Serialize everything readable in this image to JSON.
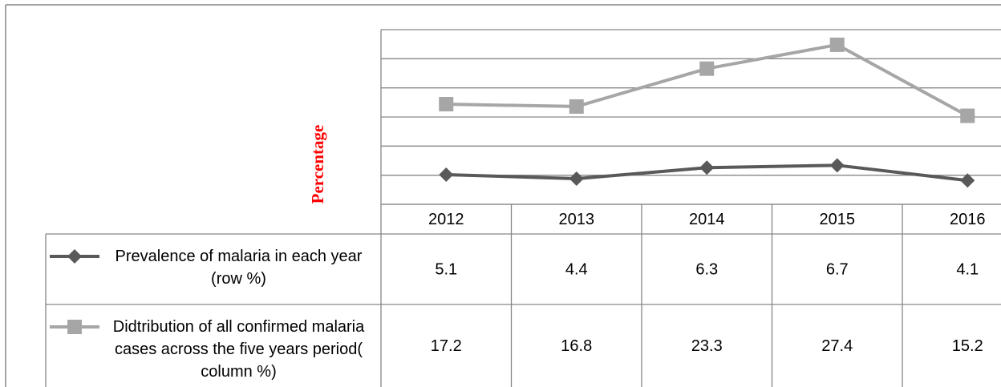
{
  "chart_data": {
    "type": "line",
    "y_label": "Percentage",
    "categories": [
      "2012",
      "2013",
      "2014",
      "2015",
      "2016"
    ],
    "series": [
      {
        "name": "Prevalence of malaria in each year (row %)",
        "color": "#595959",
        "marker": "diamond",
        "values": [
          5.1,
          4.4,
          6.3,
          6.7,
          4.1
        ]
      },
      {
        "name": "Didtribution of all confirmed malaria cases across the five years period( column %)",
        "color": "#a6a6a6",
        "marker": "square",
        "values": [
          17.2,
          16.8,
          23.3,
          27.4,
          15.2
        ]
      }
    ],
    "ylim": [
      0,
      30
    ],
    "yticks": [
      0,
      5,
      10,
      15,
      20,
      25,
      30
    ],
    "grid": true,
    "data_table": true
  }
}
